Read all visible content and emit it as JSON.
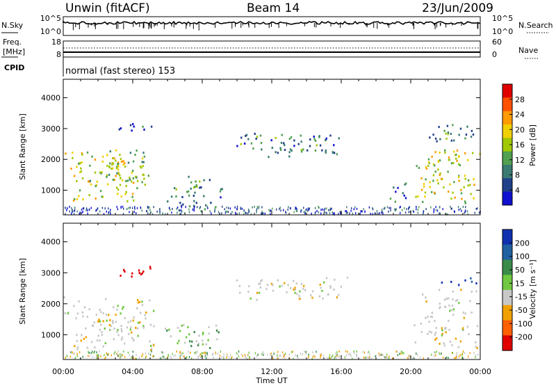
{
  "header": {
    "station": "Unwin (fitACF)",
    "beam": "Beam 14",
    "date": "23/Jun/2009"
  },
  "noise_panel": {
    "left_label": "N.Sky",
    "right_label": "N.Search",
    "left_ticks": [
      "10^5",
      "10^0"
    ],
    "right_ticks": [
      "10^5",
      "10^0"
    ]
  },
  "freq_panel": {
    "left_label_1": "Freq.",
    "left_label_2": "[MHz]",
    "right_label": "Nave",
    "left_ticks": [
      "18",
      "8"
    ],
    "right_ticks": [
      "60",
      "0"
    ]
  },
  "cpid": {
    "label": "CPID",
    "text": "normal (fast stereo) 153"
  },
  "power_colorbar": {
    "label": "Power [dB]",
    "ticks": [
      "28",
      "24",
      "20",
      "16",
      "12",
      "8",
      "4"
    ],
    "colors": [
      "#e00000",
      "#ff5000",
      "#ff9a00",
      "#f0d000",
      "#a0c800",
      "#50a050",
      "#3a7a72",
      "#20408a",
      "#1010d0"
    ]
  },
  "velocity_colorbar": {
    "label": "Velocity [m s⁻¹]",
    "ticks": [
      "200",
      "100",
      "50",
      "15",
      "-15",
      "-50",
      "-100",
      "-200"
    ],
    "colors": [
      "#1030b0",
      "#2060a0",
      "#3a8a4a",
      "#70c840",
      "#c8c8c8",
      "#f0a000",
      "#ff6000",
      "#e00000"
    ]
  },
  "chart_data": [
    {
      "type": "heatmap",
      "title": "",
      "ylabel": "Slant Range [km]",
      "ylim": [
        200,
        4600
      ],
      "yticks": [
        1000,
        2000,
        3000,
        4000
      ],
      "xlim": [
        "00:00",
        "24:00"
      ],
      "quantity": "Power [dB]",
      "regions": [
        {
          "t0": 0.0,
          "t1": 4.4,
          "r0": 600,
          "r1": 2400,
          "level": 18
        },
        {
          "t0": 1.5,
          "t1": 5.5,
          "r0": 1200,
          "r1": 2300,
          "level": 14
        },
        {
          "t0": 3.0,
          "t1": 5.3,
          "r0": 2900,
          "r1": 3250,
          "level": 6
        },
        {
          "t0": 5.8,
          "t1": 8.5,
          "r0": 400,
          "r1": 1500,
          "level": 10
        },
        {
          "t0": 8.5,
          "t1": 9.2,
          "r0": 700,
          "r1": 1200,
          "level": 8
        },
        {
          "t0": 9.5,
          "t1": 16.5,
          "r0": 2100,
          "r1": 2900,
          "level": 9
        },
        {
          "t0": 18.6,
          "t1": 19.7,
          "r0": 600,
          "r1": 1400,
          "level": 6
        },
        {
          "t0": 20.0,
          "t1": 24.0,
          "r0": 600,
          "r1": 2600,
          "level": 17
        },
        {
          "t0": 21.0,
          "t1": 24.0,
          "r0": 2500,
          "r1": 3200,
          "level": 10
        }
      ]
    },
    {
      "type": "heatmap",
      "title": "",
      "xlabel": "Time UT",
      "ylabel": "Slant Range [km]",
      "ylim": [
        200,
        4600
      ],
      "yticks": [
        1000,
        2000,
        3000,
        4000
      ],
      "xticks": [
        "00:00",
        "04:00",
        "08:00",
        "12:00",
        "16:00",
        "20:00",
        "00:00"
      ],
      "quantity": "Velocity [m s-1]",
      "regions": [
        {
          "t0": 0.0,
          "t1": 5.5,
          "r0": 500,
          "r1": 2300,
          "level": 0
        },
        {
          "t0": 3.0,
          "t1": 5.2,
          "r0": 2900,
          "r1": 3250,
          "level": -150
        },
        {
          "t0": 5.8,
          "t1": 9.0,
          "r0": 500,
          "r1": 1400,
          "level": 20
        },
        {
          "t0": 9.5,
          "t1": 16.5,
          "r0": 2100,
          "r1": 2900,
          "level": 0
        },
        {
          "t0": 20.0,
          "t1": 24.0,
          "r0": 600,
          "r1": 2500,
          "level": 0
        },
        {
          "t0": 21.5,
          "t1": 24.0,
          "r0": 2600,
          "r1": 2900,
          "level": 150
        }
      ]
    }
  ]
}
